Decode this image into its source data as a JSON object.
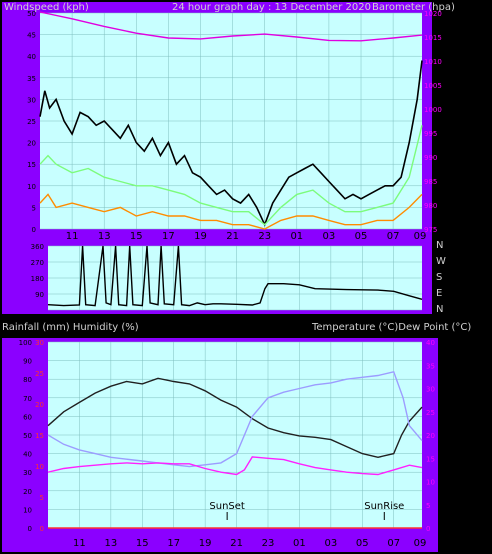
{
  "header": {
    "left_title": "Windspeed (kph)",
    "center_title": "24 hour graph day : 13 December 2020",
    "right_title": "Barometer (hpa)"
  },
  "direction_labels": [
    "N",
    "W",
    "S",
    "E",
    "N"
  ],
  "bottom_header": {
    "left_title": "Rainfall (mm)  Humidity (%)",
    "right_title": "Temperature (°C)Dew Point (°C)"
  },
  "annotations": {
    "sunset": "SunSet",
    "sunrise": "SunRise"
  },
  "colors": {
    "frame": "#8B00FF",
    "plot_bg": "#C8FFFF",
    "gust": "#000000",
    "average": "#7CFC7C",
    "lull": "#FF8C00",
    "barometer": "#E000E0",
    "wind_dir": "#1F6F8F",
    "temperature": "#202020",
    "humidity": "#9C9CFF",
    "dewpoint": "#FF20FF",
    "rainfall": "#FF3030",
    "left_axis_text": "#000000",
    "right_axis_text": "#FF00FF"
  },
  "x_tick_labels": [
    "11",
    "13",
    "15",
    "17",
    "19",
    "21",
    "23",
    "01",
    "03",
    "05",
    "07",
    "09"
  ],
  "chart_data": [
    {
      "type": "line",
      "name": "wind_barometer",
      "title": "24 hour graph day : 13 December 2020",
      "xlabel": "",
      "ylabel": "Windspeed (kph)",
      "y2label": "Barometer (hpa)",
      "x_unit": "hour",
      "ylim": [
        0,
        50
      ],
      "y_ticks": [
        0,
        5,
        10,
        15,
        20,
        25,
        30,
        35,
        40,
        45,
        50
      ],
      "y2lim": [
        975,
        1020
      ],
      "y2_ticks": [
        975,
        980,
        985,
        990,
        995,
        1000,
        1005,
        1010,
        1015,
        1020
      ],
      "series": [
        {
          "name": "gust",
          "axis": "left",
          "points": [
            [
              9.0,
              26
            ],
            [
              9.3,
              32
            ],
            [
              9.6,
              28
            ],
            [
              10,
              30
            ],
            [
              10.5,
              25
            ],
            [
              11,
              22
            ],
            [
              11.5,
              27
            ],
            [
              12,
              26
            ],
            [
              12.5,
              24
            ],
            [
              13,
              25
            ],
            [
              13.5,
              23
            ],
            [
              14,
              21
            ],
            [
              14.5,
              24
            ],
            [
              15,
              20
            ],
            [
              15.5,
              18
            ],
            [
              16,
              21
            ],
            [
              16.5,
              17
            ],
            [
              17,
              20
            ],
            [
              17.5,
              15
            ],
            [
              18,
              17
            ],
            [
              18.5,
              13
            ],
            [
              19,
              12
            ],
            [
              19.5,
              10
            ],
            [
              20,
              8
            ],
            [
              20.5,
              9
            ],
            [
              21,
              7
            ],
            [
              21.5,
              6
            ],
            [
              22,
              8
            ],
            [
              22.5,
              5
            ],
            [
              23,
              1
            ],
            [
              23.5,
              6
            ],
            [
              24,
              9
            ],
            [
              24.5,
              12
            ],
            [
              25,
              13
            ],
            [
              25.5,
              14
            ],
            [
              26,
              15
            ],
            [
              26.5,
              13
            ],
            [
              27,
              11
            ],
            [
              27.5,
              9
            ],
            [
              28,
              7
            ],
            [
              28.5,
              8
            ],
            [
              29,
              7
            ],
            [
              29.5,
              8
            ],
            [
              30,
              9
            ],
            [
              30.5,
              10
            ],
            [
              31,
              10
            ],
            [
              31.5,
              12
            ],
            [
              32,
              20
            ],
            [
              32.5,
              30
            ],
            [
              32.8,
              39
            ]
          ]
        },
        {
          "name": "average",
          "axis": "left",
          "points": [
            [
              9.0,
              15
            ],
            [
              9.5,
              17
            ],
            [
              10,
              15
            ],
            [
              11,
              13
            ],
            [
              12,
              14
            ],
            [
              13,
              12
            ],
            [
              14,
              11
            ],
            [
              15,
              10
            ],
            [
              16,
              10
            ],
            [
              17,
              9
            ],
            [
              18,
              8
            ],
            [
              19,
              6
            ],
            [
              20,
              5
            ],
            [
              21,
              4
            ],
            [
              22,
              4
            ],
            [
              23,
              1
            ],
            [
              24,
              5
            ],
            [
              25,
              8
            ],
            [
              26,
              9
            ],
            [
              27,
              6
            ],
            [
              28,
              4
            ],
            [
              29,
              4
            ],
            [
              30,
              5
            ],
            [
              31,
              6
            ],
            [
              32,
              12
            ],
            [
              32.8,
              24
            ]
          ]
        },
        {
          "name": "lull",
          "axis": "left",
          "points": [
            [
              9.0,
              6
            ],
            [
              9.5,
              8
            ],
            [
              10,
              5
            ],
            [
              11,
              6
            ],
            [
              12,
              5
            ],
            [
              13,
              4
            ],
            [
              14,
              5
            ],
            [
              15,
              3
            ],
            [
              16,
              4
            ],
            [
              17,
              3
            ],
            [
              18,
              3
            ],
            [
              19,
              2
            ],
            [
              20,
              2
            ],
            [
              21,
              1
            ],
            [
              22,
              1
            ],
            [
              23,
              0
            ],
            [
              24,
              2
            ],
            [
              25,
              3
            ],
            [
              26,
              3
            ],
            [
              27,
              2
            ],
            [
              28,
              1
            ],
            [
              29,
              1
            ],
            [
              30,
              2
            ],
            [
              31,
              2
            ],
            [
              32,
              5
            ],
            [
              32.8,
              8
            ]
          ]
        },
        {
          "name": "barometer",
          "axis": "right",
          "points": [
            [
              9.0,
              1020.2
            ],
            [
              11,
              1018.8
            ],
            [
              13,
              1017.2
            ],
            [
              15,
              1015.8
            ],
            [
              17,
              1014.8
            ],
            [
              19,
              1014.6
            ],
            [
              21,
              1015.2
            ],
            [
              23,
              1015.6
            ],
            [
              25,
              1015.0
            ],
            [
              27,
              1014.3
            ],
            [
              29,
              1014.2
            ],
            [
              31,
              1014.8
            ],
            [
              32.8,
              1015.4
            ]
          ]
        }
      ]
    },
    {
      "type": "line",
      "name": "wind_direction",
      "x_unit": "hour",
      "ylim": [
        0,
        360
      ],
      "y_ticks": [
        90,
        180,
        270,
        360
      ],
      "series": [
        {
          "name": "direction",
          "points": [
            [
              9.0,
              30
            ],
            [
              10,
              25
            ],
            [
              11,
              28
            ],
            [
              11.2,
              360
            ],
            [
              11.4,
              30
            ],
            [
              12,
              25
            ],
            [
              12.5,
              360
            ],
            [
              12.7,
              40
            ],
            [
              13,
              30
            ],
            [
              13.3,
              360
            ],
            [
              13.5,
              30
            ],
            [
              14,
              25
            ],
            [
              14.2,
              360
            ],
            [
              14.4,
              30
            ],
            [
              15,
              25
            ],
            [
              15.3,
              360
            ],
            [
              15.5,
              40
            ],
            [
              16,
              30
            ],
            [
              16.2,
              360
            ],
            [
              16.4,
              35
            ],
            [
              17,
              30
            ],
            [
              17.3,
              360
            ],
            [
              17.5,
              30
            ],
            [
              18,
              25
            ],
            [
              18.5,
              40
            ],
            [
              19,
              30
            ],
            [
              19.5,
              35
            ],
            [
              20,
              35
            ],
            [
              21,
              32
            ],
            [
              22,
              28
            ],
            [
              22.5,
              40
            ],
            [
              22.8,
              120
            ],
            [
              23,
              148
            ],
            [
              24,
              148
            ],
            [
              25,
              142
            ],
            [
              26,
              120
            ],
            [
              28,
              115
            ],
            [
              30,
              112
            ],
            [
              31,
              105
            ],
            [
              32,
              80
            ],
            [
              32.8,
              60
            ]
          ]
        }
      ]
    },
    {
      "type": "line",
      "name": "temp_humidity",
      "ylabel": "Rainfall (mm)  Humidity (%)",
      "y2label": "Temperature (°C)Dew Point (°C)",
      "x_unit": "hour",
      "ylim": [
        0,
        100
      ],
      "y_ticks": [
        0,
        10,
        20,
        30,
        40,
        50,
        60,
        70,
        80,
        90,
        100
      ],
      "rain_ticks": [
        0,
        5,
        10,
        15,
        20,
        25,
        30
      ],
      "y2lim": [
        0,
        40
      ],
      "y2_ticks": [
        0,
        5,
        10,
        15,
        20,
        25,
        30,
        35,
        40
      ],
      "sunset": 20.4,
      "sunrise": 30.4,
      "series": [
        {
          "name": "temperature",
          "axis": "right",
          "points": [
            [
              9.0,
              22
            ],
            [
              10,
              25
            ],
            [
              11,
              27
            ],
            [
              12,
              29
            ],
            [
              13,
              30.5
            ],
            [
              14,
              31.5
            ],
            [
              15,
              31
            ],
            [
              16,
              32.2
            ],
            [
              17,
              31.5
            ],
            [
              18,
              31
            ],
            [
              19,
              29.5
            ],
            [
              20,
              27.5
            ],
            [
              21,
              26
            ],
            [
              22,
              23.5
            ],
            [
              23,
              21.5
            ],
            [
              24,
              20.5
            ],
            [
              25,
              19.8
            ],
            [
              26,
              19.5
            ],
            [
              27,
              19
            ],
            [
              28,
              17.5
            ],
            [
              29,
              16
            ],
            [
              30,
              15.2
            ],
            [
              31,
              16
            ],
            [
              31.5,
              20
            ],
            [
              32,
              23
            ],
            [
              32.8,
              26
            ]
          ]
        },
        {
          "name": "humidity",
          "axis": "left",
          "points": [
            [
              9.0,
              50
            ],
            [
              10,
              45
            ],
            [
              11,
              42
            ],
            [
              12,
              40
            ],
            [
              13,
              38
            ],
            [
              14,
              37
            ],
            [
              15,
              36
            ],
            [
              16,
              35
            ],
            [
              17,
              34
            ],
            [
              18,
              33
            ],
            [
              19,
              34
            ],
            [
              20,
              35
            ],
            [
              21,
              40
            ],
            [
              22,
              60
            ],
            [
              23,
              70
            ],
            [
              24,
              73
            ],
            [
              25,
              75
            ],
            [
              26,
              77
            ],
            [
              27,
              78
            ],
            [
              28,
              80
            ],
            [
              29,
              81
            ],
            [
              30,
              82
            ],
            [
              31,
              84
            ],
            [
              31.6,
              70
            ],
            [
              32,
              55
            ],
            [
              32.8,
              47
            ]
          ]
        },
        {
          "name": "dewpoint",
          "axis": "right",
          "points": [
            [
              9.0,
              12
            ],
            [
              10,
              12.8
            ],
            [
              11,
              13.2
            ],
            [
              12,
              13.5
            ],
            [
              13,
              13.8
            ],
            [
              14,
              14
            ],
            [
              15,
              13.8
            ],
            [
              16,
              14
            ],
            [
              17,
              13.8
            ],
            [
              18,
              13.8
            ],
            [
              19,
              12.8
            ],
            [
              20,
              12
            ],
            [
              21,
              11.5
            ],
            [
              21.5,
              12.5
            ],
            [
              22,
              15.3
            ],
            [
              23,
              15
            ],
            [
              24,
              14.7
            ],
            [
              25,
              13.8
            ],
            [
              26,
              13
            ],
            [
              27,
              12.5
            ],
            [
              28,
              12
            ],
            [
              29,
              11.7
            ],
            [
              30,
              11.5
            ],
            [
              31,
              12.5
            ],
            [
              32,
              13.5
            ],
            [
              32.8,
              13
            ]
          ]
        },
        {
          "name": "rainfall",
          "axis": "rain",
          "points": [
            [
              9.0,
              0
            ],
            [
              32.8,
              0
            ]
          ]
        }
      ]
    }
  ]
}
